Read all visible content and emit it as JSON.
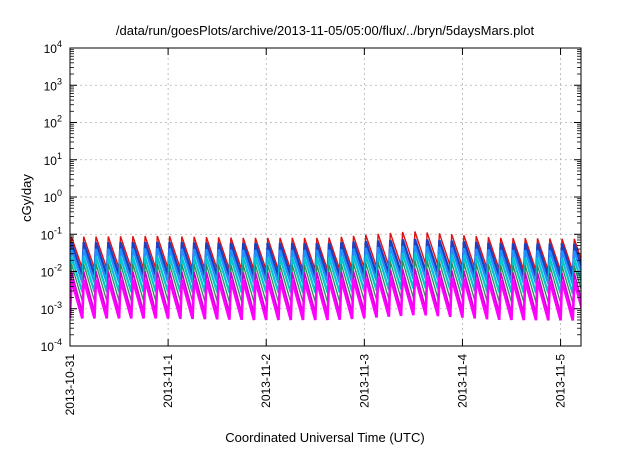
{
  "chart_data": {
    "type": "line",
    "title": "/data/run/goesPlots/archive/2013-11-05/05:00/flux/../bryn/5daysMars.plot",
    "xlabel": "Coordinated Universal Time (UTC)",
    "ylabel": "cGy/day",
    "y_scale": "log",
    "ylim": [
      0.0001,
      10000
    ],
    "xlim": [
      "2013-10-31 00:00",
      "2013-11-05 05:00"
    ],
    "x_ticks": [
      {
        "label": "2013-10-31",
        "date": "2013-10-31 00:00"
      },
      {
        "label": "2013-11-1",
        "date": "2013-11-01 00:00"
      },
      {
        "label": "2013-11-2",
        "date": "2013-11-02 00:00"
      },
      {
        "label": "2013-11-3",
        "date": "2013-11-03 00:00"
      },
      {
        "label": "2013-11-4",
        "date": "2013-11-04 00:00"
      },
      {
        "label": "2013-11-5",
        "date": "2013-11-05 00:00"
      }
    ],
    "y_ticks": [
      {
        "base": "10",
        "exp": "-4",
        "value": 0.0001
      },
      {
        "base": "10",
        "exp": "-3",
        "value": 0.001
      },
      {
        "base": "10",
        "exp": "-2",
        "value": 0.01
      },
      {
        "base": "10",
        "exp": "-1",
        "value": 0.1
      },
      {
        "base": "10",
        "exp": "0",
        "value": 1
      },
      {
        "base": "10",
        "exp": "1",
        "value": 10
      },
      {
        "base": "10",
        "exp": "2",
        "value": 100
      },
      {
        "base": "10",
        "exp": "3",
        "value": 1000
      },
      {
        "base": "10",
        "exp": "4",
        "value": 10000
      }
    ],
    "grid": true,
    "legend": "none",
    "pattern": "sawtooth",
    "cycles_per_day": 8,
    "series": [
      {
        "color": "#dd1111",
        "stroke_width": 1.4,
        "peak_values": [
          0.085,
          0.09,
          0.08,
          0.08,
          0.12,
          0.08,
          0.075
        ],
        "trough_values": [
          0.012,
          0.012,
          0.011,
          0.011,
          0.016,
          0.011,
          0.01
        ]
      },
      {
        "color": "#1f3fbf",
        "stroke_width": 2.4,
        "peak_values": [
          0.06,
          0.062,
          0.058,
          0.058,
          0.075,
          0.058,
          0.055
        ],
        "trough_values": [
          0.008,
          0.008,
          0.0075,
          0.0075,
          0.01,
          0.0075,
          0.007
        ]
      },
      {
        "color": "#1e90ff",
        "stroke_width": 2.2,
        "peak_values": [
          0.04,
          0.042,
          0.038,
          0.038,
          0.05,
          0.038,
          0.036
        ],
        "trough_values": [
          0.005,
          0.005,
          0.0048,
          0.0048,
          0.0065,
          0.0048,
          0.0045
        ]
      },
      {
        "color": "#00c8d0",
        "stroke_width": 2.2,
        "peak_values": [
          0.025,
          0.025,
          0.024,
          0.024,
          0.032,
          0.024,
          0.022
        ],
        "trough_values": [
          0.0028,
          0.0028,
          0.0027,
          0.0027,
          0.0036,
          0.0027,
          0.0025
        ]
      },
      {
        "color": "#2e8b57",
        "stroke_width": 1.3,
        "peak_values": [
          0.016,
          0.016,
          0.015,
          0.015,
          0.02,
          0.015,
          0.014
        ],
        "trough_values": [
          0.0016,
          0.0016,
          0.0015,
          0.0015,
          0.002,
          0.0015,
          0.0014
        ]
      },
      {
        "color": "#cc00cc",
        "stroke_width": 1.6,
        "peak_values": [
          0.01,
          0.01,
          0.0095,
          0.0095,
          0.012,
          0.0095,
          0.009
        ],
        "trough_values": [
          0.0008,
          0.0008,
          0.00075,
          0.00075,
          0.001,
          0.00075,
          0.0007
        ]
      },
      {
        "color": "#ff00ff",
        "stroke_width": 2.6,
        "peak_values": [
          0.006,
          0.006,
          0.0058,
          0.0058,
          0.0075,
          0.0058,
          0.0055
        ],
        "trough_values": [
          0.00055,
          0.00055,
          0.0005,
          0.0005,
          0.0007,
          0.0005,
          0.00048
        ]
      }
    ]
  }
}
